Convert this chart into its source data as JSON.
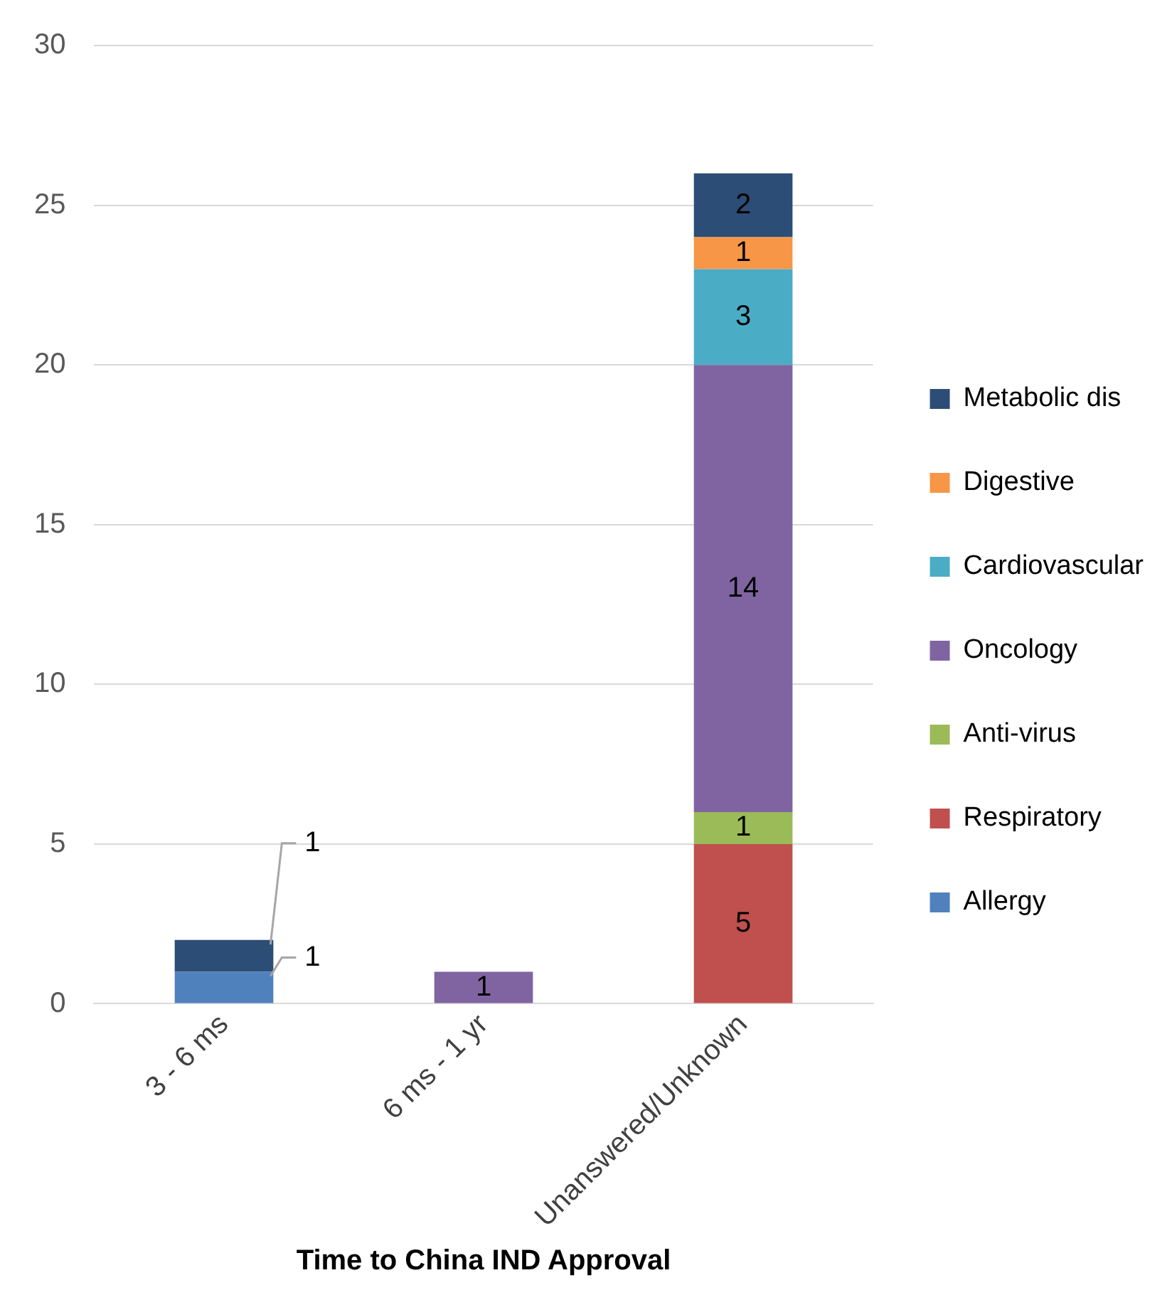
{
  "chart_data": {
    "type": "bar",
    "stacked": true,
    "xlabel": "Time to China IND Approval",
    "categories": [
      "3 - 6 ms",
      "6 ms - 1 yr",
      "Unanswered/Unknown"
    ],
    "series": [
      {
        "name": "Allergy",
        "color": "#4f81bd",
        "values": [
          1,
          null,
          null
        ]
      },
      {
        "name": "Respiratory",
        "color": "#c0504d",
        "values": [
          null,
          null,
          5
        ]
      },
      {
        "name": "Anti-virus",
        "color": "#9bbb59",
        "values": [
          null,
          null,
          1
        ]
      },
      {
        "name": "Oncology",
        "color": "#8064a2",
        "values": [
          null,
          1,
          14
        ]
      },
      {
        "name": "Cardiovascular",
        "color": "#4bacc6",
        "values": [
          null,
          null,
          3
        ]
      },
      {
        "name": "Digestive",
        "color": "#f79646",
        "values": [
          null,
          null,
          1
        ]
      },
      {
        "name": "Metabolic dis",
        "color": "#2c4d75",
        "values": [
          1,
          null,
          2
        ]
      }
    ],
    "ylim": [
      0,
      30
    ],
    "yticks": [
      0,
      5,
      10,
      15,
      20,
      25,
      30
    ],
    "grid": "y",
    "legend": "right",
    "data_labels": true
  }
}
